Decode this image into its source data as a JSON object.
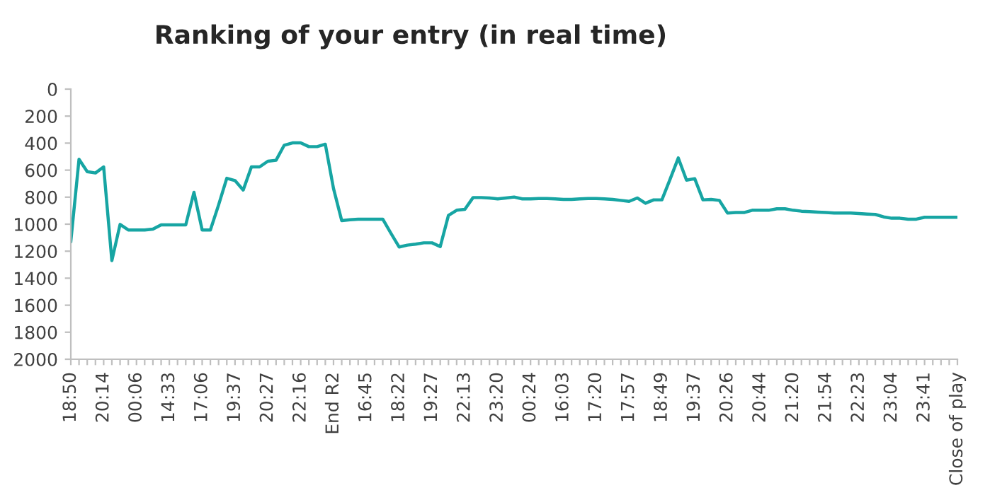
{
  "chart_data": {
    "type": "line",
    "title": "Ranking of your entry (in real time)",
    "categories": [
      "18:50",
      null,
      null,
      null,
      "20:14",
      null,
      null,
      null,
      "00:06",
      null,
      null,
      null,
      "14:33",
      null,
      null,
      null,
      "17:06",
      null,
      null,
      null,
      "19:37",
      null,
      null,
      null,
      "20:27",
      null,
      null,
      null,
      "22:16",
      null,
      null,
      null,
      "End R2",
      null,
      null,
      null,
      "16:45",
      null,
      null,
      null,
      "18:22",
      null,
      null,
      null,
      "19:27",
      null,
      null,
      null,
      "22:13",
      null,
      null,
      null,
      "23:20",
      null,
      null,
      null,
      "00:24",
      null,
      null,
      null,
      "16:03",
      null,
      null,
      null,
      "17:20",
      null,
      null,
      null,
      "17:57",
      null,
      null,
      null,
      "18:49",
      null,
      null,
      null,
      "19:37",
      null,
      null,
      null,
      "20:26",
      null,
      null,
      null,
      "20:44",
      null,
      null,
      null,
      "21:20",
      null,
      null,
      null,
      "21:54",
      null,
      null,
      null,
      "22:23",
      null,
      null,
      null,
      "23:04",
      null,
      null,
      null,
      "23:41",
      null,
      null,
      null,
      "Close of play"
    ],
    "series": [
      {
        "color": "#17a5a3",
        "values": [
          1127,
          520,
          611,
          621,
          576,
          1270,
          1002,
          1043,
          1043,
          1043,
          1037,
          1005,
          1005,
          1005,
          1005,
          764,
          1043,
          1043,
          858,
          660,
          677,
          747,
          576,
          576,
          534,
          527,
          415,
          398,
          398,
          426,
          426,
          408,
          736,
          974,
          967,
          963,
          963,
          963,
          963,
          1068,
          1169,
          1155,
          1148,
          1138,
          1138,
          1166,
          935,
          897,
          890,
          803,
          803,
          806,
          813,
          806,
          799,
          813,
          813,
          810,
          810,
          813,
          817,
          817,
          813,
          810,
          810,
          813,
          817,
          824,
          831,
          806,
          845,
          820,
          820,
          667,
          510,
          674,
          663,
          820,
          817,
          824,
          918,
          914,
          914,
          897,
          897,
          897,
          886,
          886,
          897,
          904,
          907,
          911,
          914,
          918,
          918,
          918,
          921,
          925,
          928,
          946,
          956,
          956,
          963,
          963,
          949,
          949,
          949,
          949,
          949
        ]
      }
    ],
    "ylim": [
      2000,
      0
    ],
    "yticks": [
      0,
      200,
      400,
      600,
      800,
      1000,
      1200,
      1400,
      1600,
      1800,
      2000
    ],
    "grid": false,
    "marker": "none",
    "line_style": "solid"
  }
}
